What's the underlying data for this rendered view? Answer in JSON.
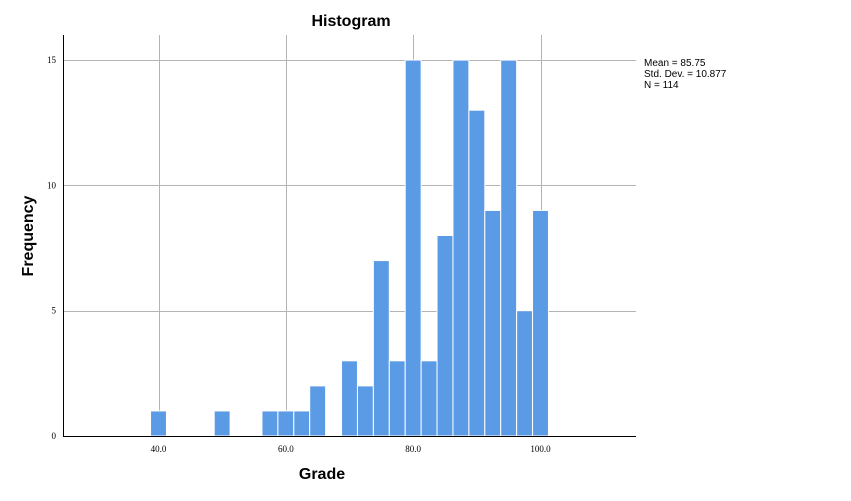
{
  "chart_data": {
    "type": "bar",
    "title": "Histogram",
    "xlabel": "Grade",
    "ylabel": "Frequency",
    "xlim": [
      25,
      115
    ],
    "ylim": [
      0,
      16
    ],
    "bin_width": 2.5,
    "x_ticks": [
      {
        "value": 40,
        "label": "40.0"
      },
      {
        "value": 60,
        "label": "60.0"
      },
      {
        "value": 80,
        "label": "80.0"
      },
      {
        "value": 100,
        "label": "100.0"
      }
    ],
    "y_ticks": [
      {
        "value": 0,
        "label": "0"
      },
      {
        "value": 5,
        "label": "5"
      },
      {
        "value": 10,
        "label": "10"
      },
      {
        "value": 15,
        "label": "15"
      }
    ],
    "grid": true,
    "bar_color": "#5b9be6",
    "bins": [
      {
        "start": 38.75,
        "count": 1
      },
      {
        "start": 48.75,
        "count": 1
      },
      {
        "start": 56.25,
        "count": 1
      },
      {
        "start": 58.75,
        "count": 1
      },
      {
        "start": 61.25,
        "count": 1
      },
      {
        "start": 63.75,
        "count": 2
      },
      {
        "start": 68.75,
        "count": 3
      },
      {
        "start": 71.25,
        "count": 2
      },
      {
        "start": 73.75,
        "count": 7
      },
      {
        "start": 76.25,
        "count": 3
      },
      {
        "start": 78.75,
        "count": 15
      },
      {
        "start": 81.25,
        "count": 3
      },
      {
        "start": 83.75,
        "count": 8
      },
      {
        "start": 86.25,
        "count": 15
      },
      {
        "start": 88.75,
        "count": 13
      },
      {
        "start": 91.25,
        "count": 9
      },
      {
        "start": 93.75,
        "count": 15
      },
      {
        "start": 96.25,
        "count": 5
      },
      {
        "start": 98.75,
        "count": 9
      }
    ],
    "stats": {
      "mean": "Mean = 85.75",
      "std_dev": "Std. Dev. = 10.877",
      "n": "N = 114"
    }
  }
}
